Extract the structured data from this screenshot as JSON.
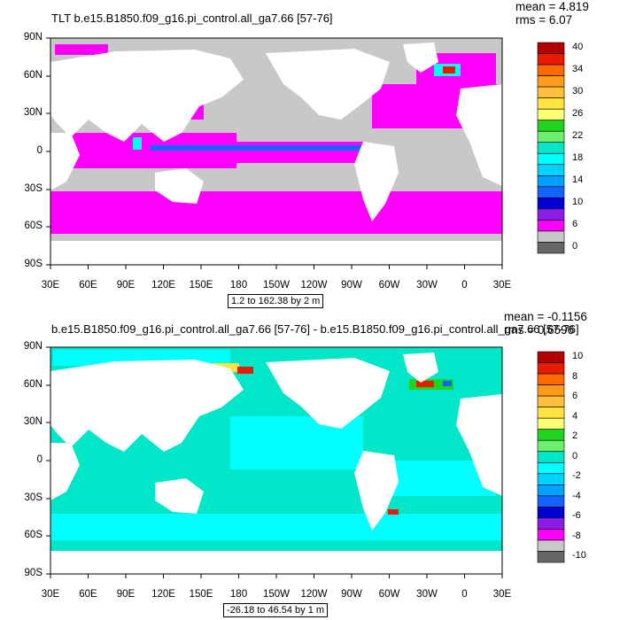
{
  "panels": [
    {
      "id": "top",
      "title": "TLT b.e15.B1850.f09_g16.pi_control.all_ga7.66 [57-76]",
      "mean": "mean = 4.819",
      "rms": "rms = 6.07",
      "range": "1.2 to 162.38 by 2 m",
      "lat_labels": [
        "90N",
        "60N",
        "30N",
        "0",
        "30S",
        "60S",
        "90S"
      ],
      "lon_labels": [
        "30E",
        "60E",
        "90E",
        "120E",
        "150E",
        "180",
        "150W",
        "120W",
        "90W",
        "60W",
        "30W",
        "0",
        "30E"
      ],
      "colorbar": {
        "labels": [
          "40",
          "34",
          "30",
          "26",
          "22",
          "18",
          "14",
          "10",
          "6",
          "0"
        ],
        "colors": [
          "#b40000",
          "#e81c00",
          "#ff6a00",
          "#ff9a1a",
          "#ffbe3c",
          "#ffe340",
          "#ffff73",
          "#1fd41f",
          "#6ef06e",
          "#00e6c8",
          "#00ffff",
          "#00d2ff",
          "#00a0ff",
          "#1464ff",
          "#0000d2",
          "#8a1ee6",
          "#ff00ff",
          "#c8c8c8",
          "#666666"
        ]
      }
    },
    {
      "id": "bottom",
      "title": "b.e15.B1850.f09_g16.pi_control.all_ga7.66 [57-76] - b.e15.B1850.f09_g16.pi_control.all_ga7.66 [57-76]",
      "mean": "mean = -0.1156",
      "rms": "rms = 0.6596",
      "range": "-26.18 to 46.54 by 1 m",
      "lat_labels": [
        "90N",
        "60N",
        "30N",
        "0",
        "30S",
        "60S",
        "90S"
      ],
      "lon_labels": [
        "30E",
        "60E",
        "90E",
        "120E",
        "150E",
        "180",
        "150W",
        "120W",
        "90W",
        "60W",
        "30W",
        "0",
        "30E"
      ],
      "colorbar": {
        "labels": [
          "10",
          "8",
          "6",
          "4",
          "2",
          "0",
          "-2",
          "-4",
          "-6",
          "-8",
          "-10"
        ],
        "colors": [
          "#b40000",
          "#e81c00",
          "#ff6a00",
          "#ff9a1a",
          "#ffbe3c",
          "#ffe340",
          "#ffff73",
          "#1fd41f",
          "#6ef06e",
          "#00e6c8",
          "#00ffff",
          "#00d2ff",
          "#00a0ff",
          "#1464ff",
          "#0000d2",
          "#8a1ee6",
          "#ff00ff",
          "#c8c8c8",
          "#666666"
        ]
      }
    }
  ],
  "colors": {
    "land": "#ffffff",
    "top_ocean_base": "#c8c8c8",
    "top_ocean_high": "#ff00ff",
    "bottom_ocean_base": "#00e6c8",
    "bottom_ocean_alt": "#00ffff"
  }
}
